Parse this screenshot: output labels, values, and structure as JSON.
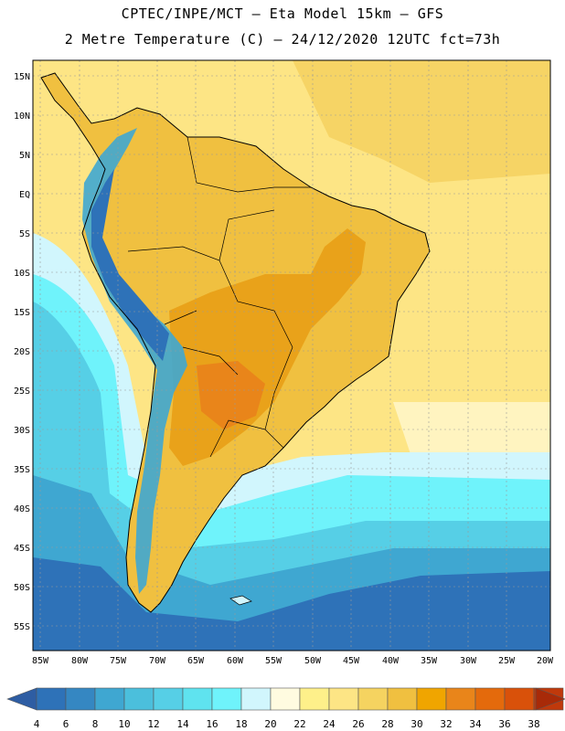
{
  "header": {
    "line1": "CPTEC/INPE/MCT –  Eta Model 15km – GFS",
    "line2": "2 Metre Temperature (C) – 24/12/2020 12UTC fct=73h"
  },
  "map": {
    "lat_labels": [
      "15N",
      "10N",
      "5N",
      "EQ",
      "5S",
      "10S",
      "15S",
      "20S",
      "25S",
      "30S",
      "35S",
      "40S",
      "45S",
      "50S",
      "55S"
    ],
    "lon_labels": [
      "85W",
      "80W",
      "75W",
      "70W",
      "65W",
      "60W",
      "55W",
      "50W",
      "45W",
      "40W",
      "35W",
      "30W",
      "25W",
      "20W"
    ],
    "colors": {
      "ocean_cold": "#2e72b8",
      "ocean_mid": "#3fa7d1",
      "ocean_light": "#56cfe6",
      "ocean_pale": "#d1f6fd",
      "land_warm": "#f0c040",
      "land_hot": "#e9a21a",
      "background": "#fde585"
    }
  },
  "colorbar": {
    "labels": [
      "4",
      "6",
      "8",
      "10",
      "12",
      "14",
      "16",
      "18",
      "20",
      "22",
      "24",
      "26",
      "28",
      "30",
      "32",
      "34",
      "36",
      "38"
    ],
    "colors": [
      "#2e5da3",
      "#2e72b8",
      "#3587c2",
      "#3fa7d1",
      "#4bbfdc",
      "#56cfe6",
      "#5fe3ef",
      "#6ff3fb",
      "#d1f6fd",
      "#fffbe0",
      "#fef08a",
      "#fde585",
      "#f5d360",
      "#f0c040",
      "#f0a500",
      "#e9851a",
      "#e46a0c",
      "#d9510a",
      "#c0390b",
      "#a82a08"
    ]
  }
}
